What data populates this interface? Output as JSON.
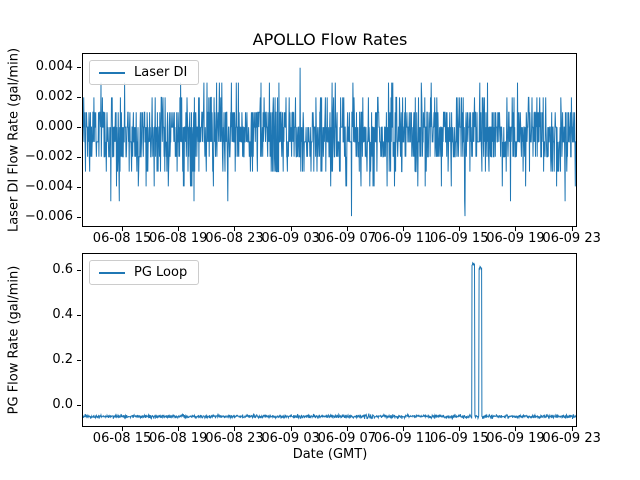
{
  "figure": {
    "title": "APOLLO Flow Rates",
    "xlabel": "Date (GMT)",
    "background_color": "#ffffff",
    "line_color": "#1f77b4",
    "text_color": "#000000"
  },
  "chart_data": [
    {
      "type": "line",
      "title": "APOLLO Flow Rates",
      "series_name": "Laser DI",
      "legend_label": "Laser DI",
      "legend_loc": "upper left",
      "ylabel": "Laser DI Flow Rate (gal/min)",
      "xlabel": "Date (GMT)",
      "line_color": "#1f77b4",
      "grid": false,
      "x_tick_labels": [
        "06-08 15",
        "06-08 19",
        "06-08 23",
        "06-09 03",
        "06-09 07",
        "06-09 11",
        "06-09 15",
        "06-09 19",
        "06-09 23"
      ],
      "x_axis": {
        "note": "hours measured from left edge of axis (approx 06-08 12:10 GMT)",
        "span_hours": 35.23,
        "first_tick_hour": 2.85,
        "tick_interval_hours": 4
      },
      "y_tick_labels": [
        "0.004",
        "0.002",
        "0.000",
        "−0.002",
        "−0.004",
        "−0.006"
      ],
      "y_tick_values": [
        0.004,
        0.002,
        0.0,
        -0.002,
        -0.004,
        -0.006
      ],
      "ylim": [
        -0.00667,
        0.00493
      ],
      "signal": {
        "description": "dense quantized noise centered slightly below zero, solid band approx -0.002 to 0.001 gal/min",
        "n_points": 1400,
        "quantum_gal_min": 0.001,
        "mean_quanta": -0.5,
        "sigma_quanta": 1.45,
        "min_quanta": -6,
        "max_quanta": 4,
        "typical_range": [
          -0.003,
          0.002
        ],
        "extremes": [
          {
            "hour": 2.0,
            "value": -0.005
          },
          {
            "hour": 15.5,
            "value": 0.004
          },
          {
            "hour": 19.2,
            "value": -0.006
          },
          {
            "hour": 27.3,
            "value": -0.006
          }
        ]
      }
    },
    {
      "type": "line",
      "series_name": "PG Loop",
      "legend_label": "PG Loop",
      "legend_loc": "upper left",
      "ylabel": "PG Flow Rate (gal/min)",
      "xlabel": "Date (GMT)",
      "line_color": "#1f77b4",
      "grid": false,
      "x_tick_labels": [
        "06-08 15",
        "06-08 19",
        "06-08 23",
        "06-09 03",
        "06-09 07",
        "06-09 11",
        "06-09 15",
        "06-09 19",
        "06-09 23"
      ],
      "x_axis": {
        "note": "hours measured from left edge of axis (approx 06-08 12:10 GMT)",
        "span_hours": 35.23,
        "first_tick_hour": 2.85,
        "tick_interval_hours": 4
      },
      "y_tick_labels": [
        "0.6",
        "0.4",
        "0.2",
        "0.0"
      ],
      "y_tick_values": [
        0.6,
        0.4,
        0.2,
        0.0
      ],
      "ylim": [
        -0.098,
        0.676
      ],
      "signal": {
        "description": "flat noisy baseline near -0.055 gal/min with two brief rectangular spikes shortly after 06-09 15",
        "n_points": 1400,
        "baseline": -0.055,
        "noise_std": 0.004,
        "spikes": [
          {
            "start_hour": 27.8,
            "end_hour": 28.0,
            "value": 0.631,
            "approx_time": "06-09 16:00"
          },
          {
            "start_hour": 28.3,
            "end_hour": 28.5,
            "value": 0.615,
            "approx_time": "06-09 16:30"
          }
        ]
      }
    }
  ]
}
